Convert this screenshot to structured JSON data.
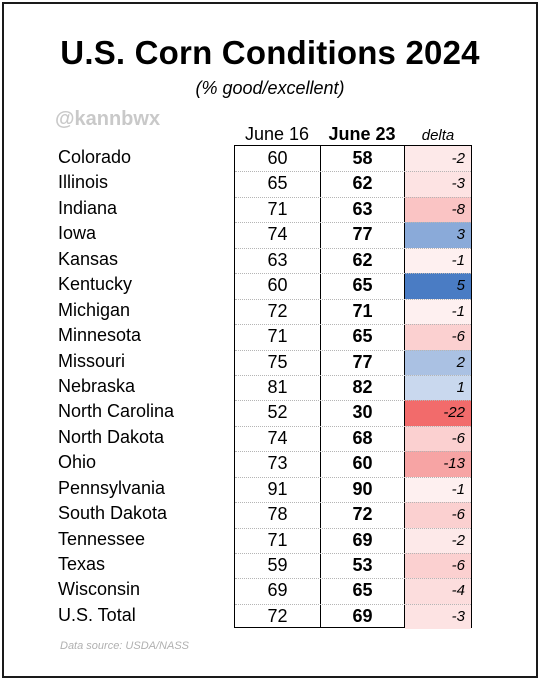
{
  "colors": {
    "negative": "#f26b6b",
    "positive": "#4a7cc4",
    "neutral": "#ffffff"
  },
  "chart_data": {
    "type": "table",
    "title": "U.S. Corn Conditions 2024",
    "subtitle": "(% good/excellent)",
    "handle": "@kannbwx",
    "source": "Data source: USDA/NASS",
    "columns": [
      "June 16",
      "June 23",
      "delta"
    ],
    "rows": [
      {
        "state": "Colorado",
        "june16": "60",
        "june23": "58",
        "delta": "-2"
      },
      {
        "state": "Illinois",
        "june16": "65",
        "june23": "62",
        "delta": "-3"
      },
      {
        "state": "Indiana",
        "june16": "71",
        "june23": "63",
        "delta": "-8"
      },
      {
        "state": "Iowa",
        "june16": "74",
        "june23": "77",
        "delta": "3"
      },
      {
        "state": "Kansas",
        "june16": "63",
        "june23": "62",
        "delta": "-1"
      },
      {
        "state": "Kentucky",
        "june16": "60",
        "june23": "65",
        "delta": "5"
      },
      {
        "state": "Michigan",
        "june16": "72",
        "june23": "71",
        "delta": "-1"
      },
      {
        "state": "Minnesota",
        "june16": "71",
        "june23": "65",
        "delta": "-6"
      },
      {
        "state": "Missouri",
        "june16": "75",
        "june23": "77",
        "delta": "2"
      },
      {
        "state": "Nebraska",
        "june16": "81",
        "june23": "82",
        "delta": "1"
      },
      {
        "state": "North Carolina",
        "june16": "52",
        "june23": "30",
        "delta": "-22"
      },
      {
        "state": "North Dakota",
        "june16": "74",
        "june23": "68",
        "delta": "-6"
      },
      {
        "state": "Ohio",
        "june16": "73",
        "june23": "60",
        "delta": "-13"
      },
      {
        "state": "Pennsylvania",
        "june16": "91",
        "june23": "90",
        "delta": "-1"
      },
      {
        "state": "South Dakota",
        "june16": "78",
        "june23": "72",
        "delta": "-6"
      },
      {
        "state": "Tennessee",
        "june16": "71",
        "june23": "69",
        "delta": "-2"
      },
      {
        "state": "Texas",
        "june16": "59",
        "june23": "53",
        "delta": "-6"
      },
      {
        "state": "Wisconsin",
        "june16": "69",
        "june23": "65",
        "delta": "-4"
      },
      {
        "state": "U.S. Total",
        "june16": "72",
        "june23": "69",
        "delta": "-3"
      }
    ]
  }
}
